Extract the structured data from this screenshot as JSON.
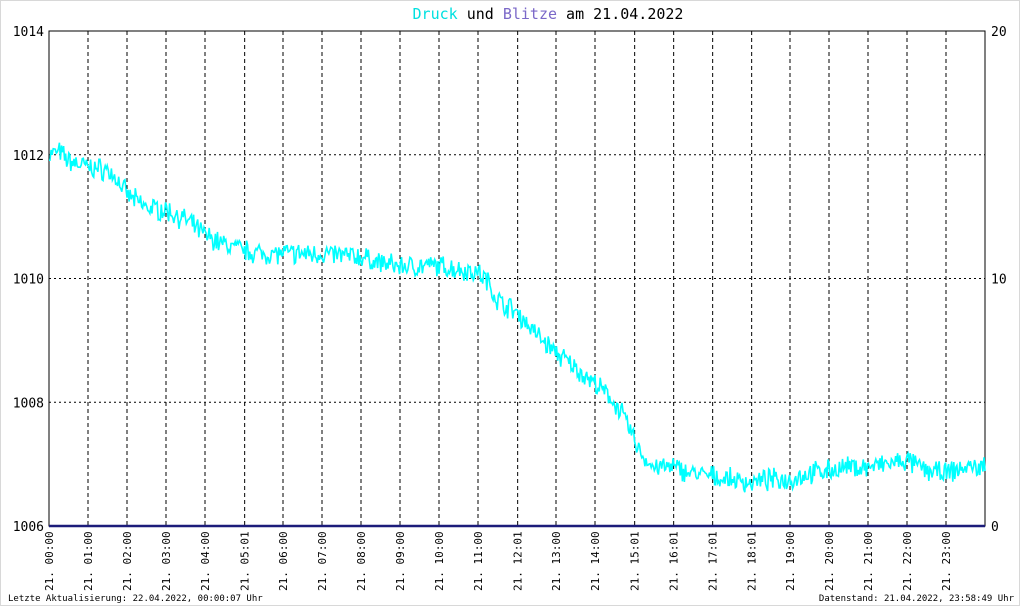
{
  "title": {
    "part1": "Druck",
    "part2": " und ",
    "part3": "Blitze",
    "part4": " am 21.04.2022",
    "color1": "#00e0e0",
    "color2": "#000000",
    "color3": "#7b68c8",
    "color4": "#000000"
  },
  "footer": {
    "left": "Letzte Aktualisierung: 22.04.2022, 00:00:07 Uhr",
    "right": "Datenstand: 21.04.2022, 23:58:49 Uhr"
  },
  "chart_data": {
    "type": "line",
    "title": "Druck und Blitze am 21.04.2022",
    "grid": true,
    "x_ticks": [
      "21. 00:00",
      "21. 01:00",
      "21. 02:00",
      "21. 03:00",
      "21. 04:00",
      "21. 05:01",
      "21. 06:00",
      "21. 07:00",
      "21. 08:00",
      "21. 09:00",
      "21. 10:00",
      "21. 11:00",
      "21. 12:01",
      "21. 13:00",
      "21. 14:00",
      "21. 15:01",
      "21. 16:01",
      "21. 17:01",
      "21. 18:01",
      "21. 19:00",
      "21. 20:00",
      "21. 21:00",
      "21. 22:00",
      "21. 23:00"
    ],
    "x_tick_hours": [
      0,
      1,
      2,
      3,
      4,
      5.017,
      6,
      7,
      8,
      9,
      10,
      11,
      12.017,
      13,
      14,
      15.017,
      16.017,
      17.017,
      18.017,
      19,
      20,
      21,
      22,
      23
    ],
    "xlim_hours": [
      0,
      24
    ],
    "y_left": {
      "ylim": [
        1006,
        1014
      ],
      "ticks": [
        "1014",
        "1012",
        "1010",
        "1008",
        "1006"
      ]
    },
    "y_right": {
      "ylim": [
        0,
        20
      ],
      "ticks": [
        "20",
        "10",
        "0"
      ]
    },
    "series": [
      {
        "name": "Druck",
        "color": "#00ffff",
        "axis": "left",
        "x_hours": [
          0,
          0.25,
          0.5,
          1,
          1.5,
          1.75,
          2,
          2.5,
          3,
          3.5,
          4,
          4.5,
          5,
          5.5,
          6,
          7,
          8,
          8.5,
          9,
          9.5,
          10,
          10.5,
          11,
          11.25,
          11.5,
          12,
          12.5,
          13,
          13.5,
          14,
          14.5,
          14.75,
          15,
          15.25,
          15.5,
          16,
          16.5,
          17,
          17.5,
          18,
          18.5,
          19,
          19.5,
          20,
          20.5,
          21,
          21.5,
          22,
          22.5,
          23,
          23.5,
          24
        ],
        "values": [
          1012.0,
          1012.05,
          1011.9,
          1011.8,
          1011.75,
          1011.6,
          1011.35,
          1011.15,
          1011.1,
          1010.95,
          1010.7,
          1010.55,
          1010.45,
          1010.4,
          1010.4,
          1010.4,
          1010.35,
          1010.25,
          1010.2,
          1010.2,
          1010.2,
          1010.15,
          1010.1,
          1009.95,
          1009.65,
          1009.45,
          1009.1,
          1008.8,
          1008.55,
          1008.3,
          1008.0,
          1007.75,
          1007.4,
          1007.1,
          1006.95,
          1006.95,
          1006.85,
          1006.8,
          1006.75,
          1006.7,
          1006.75,
          1006.75,
          1006.85,
          1006.9,
          1006.95,
          1006.95,
          1007.0,
          1007.05,
          1006.9,
          1006.85,
          1006.95,
          1006.95
        ]
      },
      {
        "name": "Blitze",
        "color": "#1c1c7a",
        "axis": "right",
        "x_hours": [
          0,
          24
        ],
        "values": [
          0,
          0
        ]
      }
    ]
  }
}
